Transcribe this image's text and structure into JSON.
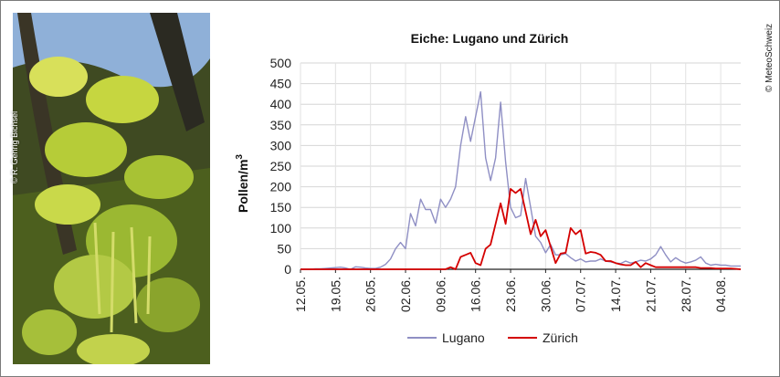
{
  "photo_credit": "© R. Gehrig Bichsel",
  "copyright": "© MeteoSchweiz",
  "colors": {
    "lugano": "#8f8fc4",
    "zurich": "#d40000",
    "axis": "#222222",
    "leaf": "#b5c93c"
  },
  "chart_data": {
    "type": "line",
    "title": "Eiche: Lugano und Zürich",
    "xlabel": "",
    "ylabel": "Pollen/m",
    "ylabel_sup": "3",
    "ylim": [
      0,
      500
    ],
    "yticks": [
      0,
      50,
      100,
      150,
      200,
      250,
      300,
      350,
      400,
      450,
      500
    ],
    "grid": true,
    "legend": "bottom",
    "x_start": "12.05.",
    "x_days": 88,
    "x_tick_labels": [
      "12.05.",
      "19.05.",
      "26.05.",
      "02.06.",
      "09.06.",
      "16.06.",
      "23.06.",
      "30.06.",
      "07.07.",
      "14.07.",
      "21.07.",
      "28.07.",
      "04.08."
    ],
    "x_tick_step_days": 7,
    "series": [
      {
        "name": "Lugano",
        "color": "#8f8fc4",
        "values": [
          0,
          0,
          0,
          1,
          1,
          2,
          3,
          4,
          5,
          3,
          0,
          6,
          5,
          3,
          2,
          2,
          5,
          12,
          25,
          50,
          65,
          50,
          135,
          105,
          170,
          145,
          145,
          112,
          170,
          150,
          170,
          200,
          300,
          370,
          310,
          370,
          430,
          270,
          215,
          270,
          405,
          260,
          150,
          125,
          130,
          220,
          150,
          80,
          65,
          40,
          60,
          35,
          35,
          38,
          28,
          20,
          25,
          18,
          20,
          20,
          25,
          20,
          18,
          15,
          14,
          20,
          15,
          18,
          22,
          20,
          25,
          35,
          55,
          35,
          18,
          28,
          20,
          15,
          18,
          22,
          30,
          15,
          10,
          12,
          10,
          10,
          8,
          8,
          8
        ]
      },
      {
        "name": "Zürich",
        "color": "#d40000",
        "values": [
          0,
          0,
          0,
          0,
          0,
          0,
          0,
          0,
          0,
          0,
          0,
          0,
          0,
          0,
          0,
          0,
          0,
          0,
          0,
          0,
          0,
          0,
          0,
          0,
          0,
          0,
          0,
          0,
          0,
          0,
          5,
          0,
          30,
          35,
          40,
          15,
          10,
          50,
          60,
          110,
          160,
          110,
          195,
          185,
          195,
          140,
          85,
          120,
          80,
          95,
          55,
          15,
          38,
          40,
          100,
          85,
          95,
          38,
          42,
          40,
          35,
          20,
          20,
          15,
          12,
          10,
          10,
          18,
          5,
          15,
          10,
          5,
          5,
          5,
          5,
          5,
          5,
          5,
          5,
          5,
          3,
          3,
          3,
          2,
          2,
          2,
          2,
          1,
          0
        ]
      }
    ]
  }
}
